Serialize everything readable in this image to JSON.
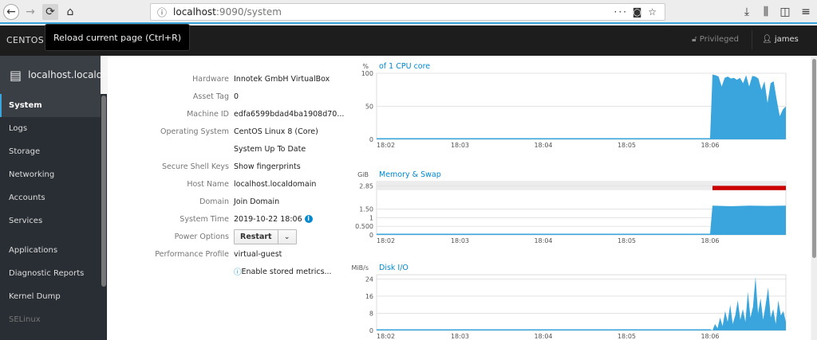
{
  "browser": {
    "url_host": "localhost",
    "url_rest": ":9090/system",
    "tooltip": "Reload current page (Ctrl+R)"
  },
  "header": {
    "brand": "CENTOS LINUX",
    "privileged": "Privileged",
    "user": "james"
  },
  "sidebar": {
    "host": "localhost.locald...",
    "items": [
      {
        "label": "System",
        "active": true
      },
      {
        "label": "Logs"
      },
      {
        "label": "Storage"
      },
      {
        "label": "Networking"
      },
      {
        "label": "Accounts"
      },
      {
        "label": "Services"
      },
      {
        "label": "Applications"
      },
      {
        "label": "Diagnostic Reports"
      },
      {
        "label": "Kernel Dump"
      },
      {
        "label": "SELinux"
      }
    ]
  },
  "details": [
    {
      "key": "Hardware",
      "value": "Innotek GmbH VirtualBox",
      "link": true
    },
    {
      "key": "Asset Tag",
      "value": "0"
    },
    {
      "key": "Machine ID",
      "value": "edfa6599bdad4ba1908d70..."
    },
    {
      "key": "Operating System",
      "value": "CentOS Linux 8 (Core)"
    },
    {
      "key": "",
      "value": "System Up To Date"
    },
    {
      "key": "Secure Shell Keys",
      "value": "Show fingerprints",
      "link": true
    },
    {
      "key": "Host Name",
      "value": "localhost.localdomain",
      "link": true
    },
    {
      "key": "Domain",
      "value": "Join Domain",
      "link": true
    },
    {
      "key": "System Time",
      "value": "2019-10-22 18:06",
      "link": true,
      "info": true
    },
    {
      "key": "Power Options",
      "button": "Restart"
    },
    {
      "key": "Performance Profile",
      "value": "virtual-guest",
      "link": true
    },
    {
      "key": "",
      "value": "Enable stored metrics...",
      "link": true,
      "icon": true
    }
  ],
  "colors": {
    "accent": "#0088ce",
    "series": "#39a5dc",
    "swap": "#cc0000"
  },
  "chart_data": [
    {
      "type": "area",
      "unit": "%",
      "title": "of 1 CPU core",
      "x_ticks": [
        "18:02",
        "18:03",
        "18:04",
        "18:05",
        "18:06"
      ],
      "y_ticks": [
        "0",
        "50",
        "100"
      ],
      "ylim": [
        0,
        100
      ],
      "grid": true,
      "values_after_1806": [
        98,
        97,
        95,
        80,
        93,
        95,
        92,
        93,
        90,
        93,
        85,
        97,
        80,
        96,
        95,
        92,
        75,
        88,
        55,
        85,
        88,
        60,
        35,
        45,
        50
      ],
      "baseline": 0
    },
    {
      "type": "area",
      "unit": "GiB",
      "title": "Memory & Swap",
      "x_ticks": [
        "18:02",
        "18:03",
        "18:04",
        "18:05",
        "18:06"
      ],
      "y_ticks": [
        "0",
        "0.500",
        "1",
        "1.50",
        "2.85"
      ],
      "ylim": [
        0,
        3.1
      ],
      "grid": true,
      "memory_after_1806": 1.7,
      "swap_band": [
        2.6,
        2.85
      ]
    },
    {
      "type": "area",
      "unit": "MiB/s",
      "title": "Disk I/O",
      "x_ticks": [
        "18:02",
        "18:03",
        "18:04",
        "18:05",
        "18:06"
      ],
      "y_ticks": [
        "0",
        "8",
        "16",
        "24"
      ],
      "ylim": [
        0,
        26
      ],
      "grid": true,
      "values_after_1806": [
        0,
        3,
        1,
        6,
        2,
        9,
        4,
        12,
        3,
        7,
        14,
        5,
        10,
        4,
        18,
        6,
        11,
        25,
        8,
        15,
        5,
        12,
        20,
        6,
        10,
        3,
        14,
        7,
        9,
        4
      ]
    }
  ]
}
